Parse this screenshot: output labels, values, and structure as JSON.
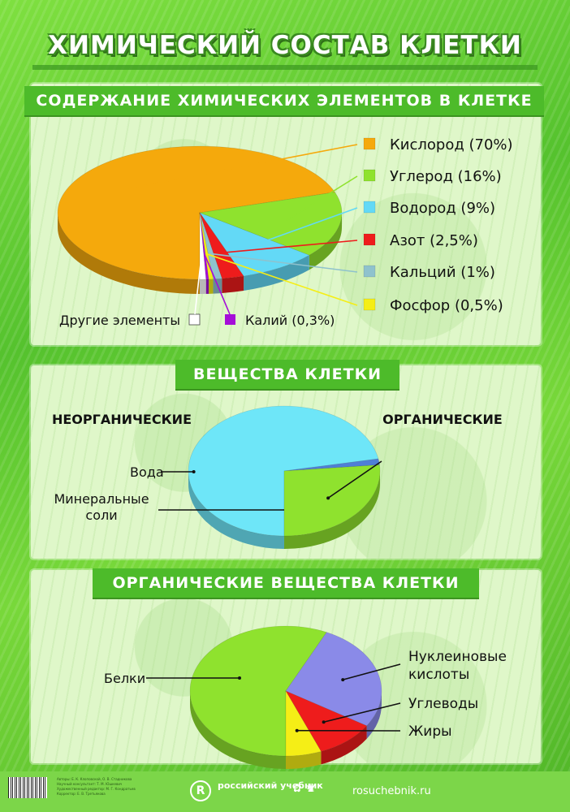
{
  "title": "ХИМИЧЕСКИЙ СОСТАВ КЛЕТКИ",
  "chart_data": [
    {
      "type": "pie",
      "title": "СОДЕРЖАНИЕ ХИМИЧЕСКИХ ЭЛЕМЕНТОВ В КЛЕТКЕ",
      "slices": [
        {
          "label": "Кислород (70%)",
          "value": 70,
          "color": "#f5a90c"
        },
        {
          "label": "Углерод (16%)",
          "value": 16,
          "color": "#8fe22e"
        },
        {
          "label": "Водород (9%)",
          "value": 9,
          "color": "#63d9f6"
        },
        {
          "label": "Азот (2,5%)",
          "value": 2.5,
          "color": "#ee1c1c"
        },
        {
          "label": "Кальций (1%)",
          "value": 1,
          "color": "#8fc2cd"
        },
        {
          "label": "Фосфор (0,5%)",
          "value": 0.5,
          "color": "#f5ee16"
        },
        {
          "label": "Калий (0,3%)",
          "value": 0.3,
          "color": "#a50dd8"
        },
        {
          "label": "Другие элементы",
          "value": 0.7,
          "color": "#ffffff"
        }
      ],
      "legend": "right"
    },
    {
      "type": "pie",
      "title": "ВЕЩЕСТВА КЛЕТКИ",
      "group_labels": [
        "НЕОРГАНИЧЕСКИЕ",
        "ОРГАНИЧЕСКИЕ"
      ],
      "slices": [
        {
          "label": "Вода",
          "value": 72,
          "color": "#6ee6f8",
          "group": "НЕОРГАНИЧЕСКИЕ"
        },
        {
          "label": "Минеральные соли",
          "value": 1.5,
          "color": "#4f7fd6",
          "group": "НЕОРГАНИЧЕСКИЕ"
        },
        {
          "label": "",
          "value": 26.5,
          "color": "#8fe22e",
          "group": "ОРГАНИЧЕСКИЕ"
        }
      ]
    },
    {
      "type": "pie",
      "title": "ОРГАНИЧЕСКИЕ ВЕЩЕСТВА КЛЕТКИ",
      "slices": [
        {
          "label": "Белки",
          "value": 57,
          "color": "#8fe22e"
        },
        {
          "label": "Нуклеиновые кислоты",
          "value": 27,
          "color": "#8a8ae8"
        },
        {
          "label": "Углеводы",
          "value": 10,
          "color": "#ee1c1c"
        },
        {
          "label": "Жиры",
          "value": 6,
          "color": "#f5ee16"
        }
      ]
    }
  ],
  "footer": {
    "credits": [
      "Авторы: Е. К. Клоповской, О. В. Стадникова",
      "Научный консультант: Т. М. Юшкевич",
      "Художественный редактор: М. Г. Кондратьев",
      "Корректор: Е. В. Третьякова"
    ],
    "brand": "российский учебник",
    "brand_letter": "R",
    "site": "rosuchebnik.ru"
  }
}
